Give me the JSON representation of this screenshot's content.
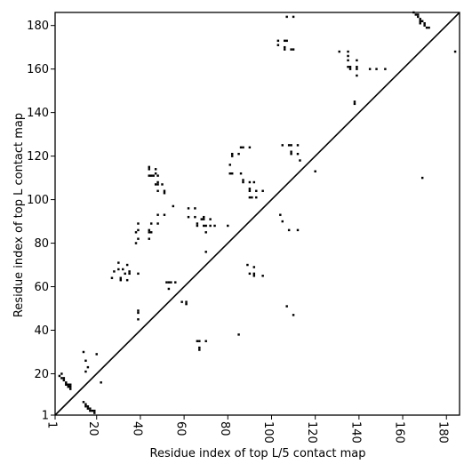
{
  "chart_data": {
    "type": "scatter",
    "title": "",
    "xlabel": "Residue index of top L/5 contact map",
    "ylabel": "Residue index of top L contact map",
    "xlim": [
      1,
      186
    ],
    "ylim": [
      1,
      186
    ],
    "x_ticks": [
      1,
      20,
      40,
      60,
      80,
      100,
      120,
      140,
      160,
      180
    ],
    "y_ticks": [
      1,
      20,
      40,
      60,
      80,
      100,
      120,
      140,
      160,
      180
    ],
    "diagonal_line": true,
    "marker": "square",
    "marker_color": "#000000",
    "points": [
      [
        3,
        19
      ],
      [
        4,
        18
      ],
      [
        4,
        20
      ],
      [
        5,
        18
      ],
      [
        5,
        17
      ],
      [
        6,
        16
      ],
      [
        6,
        15
      ],
      [
        7,
        15
      ],
      [
        7,
        14
      ],
      [
        8,
        14
      ],
      [
        8,
        13
      ],
      [
        8,
        15
      ],
      [
        14,
        7
      ],
      [
        15,
        6
      ],
      [
        15,
        5
      ],
      [
        16,
        5
      ],
      [
        16,
        4
      ],
      [
        17,
        4
      ],
      [
        17,
        3
      ],
      [
        18,
        3
      ],
      [
        19,
        2
      ],
      [
        19,
        3
      ],
      [
        14,
        30
      ],
      [
        15,
        26
      ],
      [
        15,
        21
      ],
      [
        16,
        23
      ],
      [
        20,
        29
      ],
      [
        22,
        16
      ],
      [
        27,
        64
      ],
      [
        28,
        67
      ],
      [
        30,
        68
      ],
      [
        30,
        71
      ],
      [
        31,
        64
      ],
      [
        31,
        63
      ],
      [
        32,
        68
      ],
      [
        33,
        66
      ],
      [
        34,
        70
      ],
      [
        34,
        63
      ],
      [
        35,
        66
      ],
      [
        35,
        67
      ],
      [
        39,
        66
      ],
      [
        38,
        80
      ],
      [
        39,
        82
      ],
      [
        38,
        85
      ],
      [
        39,
        86
      ],
      [
        39,
        89
      ],
      [
        44,
        82
      ],
      [
        44,
        85
      ],
      [
        44,
        86
      ],
      [
        45,
        85
      ],
      [
        45,
        89
      ],
      [
        48,
        89
      ],
      [
        48,
        93
      ],
      [
        39,
        45
      ],
      [
        39,
        48
      ],
      [
        39,
        49
      ],
      [
        44,
        111
      ],
      [
        44,
        114
      ],
      [
        44,
        115
      ],
      [
        45,
        111
      ],
      [
        46,
        111
      ],
      [
        47,
        107
      ],
      [
        47,
        112
      ],
      [
        47,
        114
      ],
      [
        48,
        108
      ],
      [
        48,
        111
      ],
      [
        48,
        104
      ],
      [
        48,
        107
      ],
      [
        50,
        107
      ],
      [
        51,
        103
      ],
      [
        51,
        104
      ],
      [
        51,
        93
      ],
      [
        52,
        62
      ],
      [
        53,
        62
      ],
      [
        53,
        59
      ],
      [
        54,
        62
      ],
      [
        55,
        97
      ],
      [
        56,
        62
      ],
      [
        59,
        53
      ],
      [
        61,
        52
      ],
      [
        61,
        53
      ],
      [
        62,
        92
      ],
      [
        62,
        96
      ],
      [
        65,
        92
      ],
      [
        65,
        96
      ],
      [
        66,
        88
      ],
      [
        66,
        89
      ],
      [
        68,
        91
      ],
      [
        69,
        92
      ],
      [
        69,
        91
      ],
      [
        69,
        88
      ],
      [
        70,
        85
      ],
      [
        70,
        88
      ],
      [
        72,
        91
      ],
      [
        72,
        88
      ],
      [
        74,
        88
      ],
      [
        80,
        88
      ],
      [
        66,
        35
      ],
      [
        67,
        35
      ],
      [
        67,
        32
      ],
      [
        67,
        31
      ],
      [
        70,
        35
      ],
      [
        70,
        76
      ],
      [
        81,
        112
      ],
      [
        81,
        116
      ],
      [
        82,
        112
      ],
      [
        82,
        121
      ],
      [
        82,
        120
      ],
      [
        85,
        121
      ],
      [
        85,
        38
      ],
      [
        86,
        112
      ],
      [
        86,
        124
      ],
      [
        87,
        124
      ],
      [
        87,
        108
      ],
      [
        87,
        109
      ],
      [
        90,
        124
      ],
      [
        90,
        108
      ],
      [
        90,
        105
      ],
      [
        90,
        104
      ],
      [
        90,
        101
      ],
      [
        91,
        101
      ],
      [
        92,
        108
      ],
      [
        93,
        101
      ],
      [
        93,
        104
      ],
      [
        96,
        104
      ],
      [
        89,
        70
      ],
      [
        90,
        66
      ],
      [
        92,
        65
      ],
      [
        92,
        66
      ],
      [
        92,
        69
      ],
      [
        96,
        65
      ],
      [
        103,
        171
      ],
      [
        103,
        173
      ],
      [
        106,
        173
      ],
      [
        106,
        170
      ],
      [
        106,
        169
      ],
      [
        107,
        173
      ],
      [
        109,
        169
      ],
      [
        110,
        169
      ],
      [
        107,
        184
      ],
      [
        110,
        184
      ],
      [
        104,
        93
      ],
      [
        105,
        90
      ],
      [
        107,
        51
      ],
      [
        108,
        86
      ],
      [
        110,
        47
      ],
      [
        112,
        86
      ],
      [
        105,
        125
      ],
      [
        108,
        125
      ],
      [
        109,
        125
      ],
      [
        109,
        122
      ],
      [
        109,
        121
      ],
      [
        112,
        125
      ],
      [
        112,
        121
      ],
      [
        113,
        118
      ],
      [
        120,
        113
      ],
      [
        131,
        168
      ],
      [
        135,
        168
      ],
      [
        135,
        166
      ],
      [
        135,
        164
      ],
      [
        135,
        161
      ],
      [
        136,
        161
      ],
      [
        136,
        160
      ],
      [
        139,
        164
      ],
      [
        139,
        161
      ],
      [
        139,
        160
      ],
      [
        139,
        157
      ],
      [
        138,
        145
      ],
      [
        138,
        144
      ],
      [
        145,
        160
      ],
      [
        148,
        160
      ],
      [
        152,
        160
      ],
      [
        165,
        186
      ],
      [
        166,
        185
      ],
      [
        167,
        185
      ],
      [
        167,
        184
      ],
      [
        168,
        183
      ],
      [
        168,
        182
      ],
      [
        168,
        181
      ],
      [
        169,
        182
      ],
      [
        170,
        181
      ],
      [
        170,
        180
      ],
      [
        171,
        179
      ],
      [
        172,
        179
      ],
      [
        169,
        110
      ],
      [
        184,
        168
      ]
    ]
  }
}
